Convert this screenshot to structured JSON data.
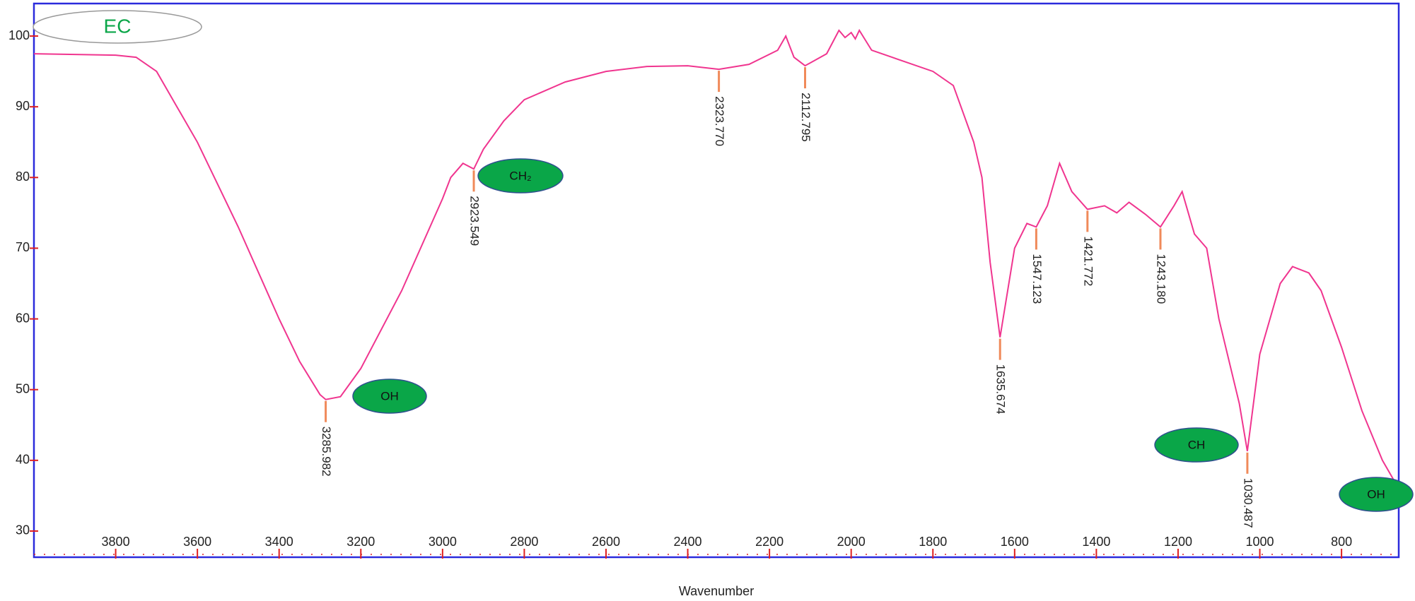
{
  "chart_data": {
    "type": "line",
    "x_label": "Wavenumber",
    "xlim": [
      4000,
      660
    ],
    "ylim": [
      26.3,
      104.6
    ],
    "xticks": [
      3800,
      3600,
      3400,
      3200,
      3000,
      2800,
      2600,
      2400,
      2200,
      2000,
      1800,
      1600,
      1400,
      1200,
      1000,
      800
    ],
    "yticks": [
      30,
      40,
      50,
      60,
      70,
      80,
      90,
      100
    ],
    "series": [
      {
        "color": "#f0358f",
        "x": [
          4000,
          3800,
          3750,
          3700,
          3650,
          3600,
          3500,
          3400,
          3350,
          3300,
          3285.982,
          3250,
          3200,
          3100,
          3000,
          2980,
          2950,
          2923.549,
          2900,
          2850,
          2800,
          2700,
          2600,
          2500,
          2400,
          2323.77,
          2250,
          2180,
          2160,
          2140,
          2112.795,
          2060,
          2030,
          2015,
          2000,
          1990,
          1980,
          1950,
          1900,
          1800,
          1750,
          1700,
          1680,
          1660,
          1635.674,
          1600,
          1570,
          1547.123,
          1520,
          1490,
          1460,
          1421.772,
          1380,
          1350,
          1320,
          1280,
          1243.18,
          1210,
          1190,
          1160,
          1130,
          1100,
          1050,
          1030.487,
          1000,
          950,
          920,
          880,
          850,
          800,
          750,
          700,
          670
        ],
        "values": [
          97.5,
          97.3,
          97,
          95,
          90,
          85,
          73,
          60,
          54,
          49.3,
          48.6,
          49,
          53,
          64,
          77,
          80,
          82,
          81.2,
          84,
          88,
          91,
          93.5,
          95,
          95.7,
          95.8,
          95.3,
          96,
          98,
          100,
          97,
          95.8,
          97.5,
          100.8,
          99.8,
          100.5,
          99.6,
          100.8,
          98,
          97,
          95,
          93,
          85,
          80,
          68,
          57.4,
          70,
          73.5,
          73,
          76,
          82,
          78,
          75.5,
          76,
          75,
          76.5,
          74.8,
          73,
          76,
          78,
          72,
          70,
          60,
          48,
          41.3,
          55,
          65,
          67.4,
          66.5,
          64,
          56,
          47,
          40,
          37
        ]
      }
    ],
    "peaks": [
      3285.982,
      2923.549,
      {
        "value": 2323.77,
        "label": "2323.770"
      },
      2112.795,
      1635.674,
      1547.123,
      1421.772,
      {
        "value": 1243.18,
        "label": "1243.180"
      },
      1030.487
    ],
    "annotations": [
      "EC",
      "CH₂",
      "OH",
      "CH",
      "OH"
    ]
  }
}
